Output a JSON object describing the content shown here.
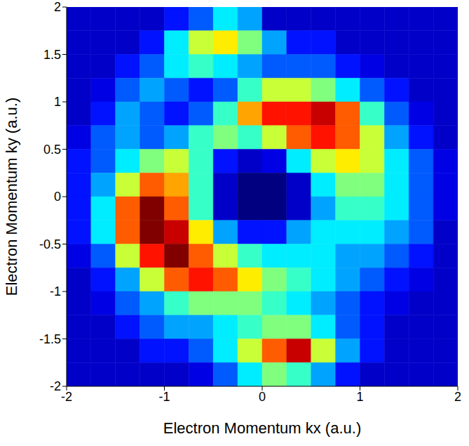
{
  "chart_data": {
    "type": "heatmap",
    "xlabel": "Electron Momentum kx (a.u.)",
    "ylabel": "Electron Momentum ky (a.u.)",
    "xlim": [
      -2,
      2
    ],
    "ylim": [
      -2,
      2
    ],
    "xticks": [
      -2,
      -1,
      0,
      1,
      2
    ],
    "yticks": [
      -2,
      -1.5,
      -1,
      -0.5,
      0,
      0.5,
      1,
      1.5,
      2
    ],
    "x": [
      -1.875,
      -1.625,
      -1.375,
      -1.125,
      -0.875,
      -0.625,
      -0.375,
      -0.125,
      0.125,
      0.375,
      0.625,
      0.875,
      1.125,
      1.375,
      1.625,
      1.875
    ],
    "y": [
      1.875,
      1.625,
      1.375,
      1.125,
      0.875,
      0.625,
      0.375,
      0.125,
      -0.125,
      -0.375,
      -0.625,
      -0.875,
      -1.125,
      -1.375,
      -1.625,
      -1.875
    ],
    "z": [
      [
        0.1,
        0.1,
        0.1,
        0.1,
        0.15,
        0.2,
        0.3,
        0.25,
        0.1,
        0.1,
        0.1,
        0.1,
        0.1,
        0.1,
        0.1,
        0.1
      ],
      [
        0.1,
        0.1,
        0.1,
        0.15,
        0.3,
        0.45,
        0.5,
        0.4,
        0.25,
        0.15,
        0.15,
        0.1,
        0.1,
        0.1,
        0.1,
        0.1
      ],
      [
        0.1,
        0.1,
        0.15,
        0.2,
        0.3,
        0.35,
        0.3,
        0.25,
        0.2,
        0.2,
        0.2,
        0.15,
        0.12,
        0.1,
        0.1,
        0.1
      ],
      [
        0.1,
        0.12,
        0.2,
        0.25,
        0.2,
        0.15,
        0.2,
        0.35,
        0.45,
        0.45,
        0.4,
        0.3,
        0.2,
        0.15,
        0.1,
        0.1
      ],
      [
        0.1,
        0.15,
        0.25,
        0.2,
        0.15,
        0.2,
        0.35,
        0.55,
        0.65,
        0.65,
        0.7,
        0.6,
        0.35,
        0.2,
        0.12,
        0.1
      ],
      [
        0.12,
        0.2,
        0.25,
        0.2,
        0.25,
        0.35,
        0.4,
        0.35,
        0.45,
        0.6,
        0.65,
        0.6,
        0.45,
        0.25,
        0.15,
        0.1
      ],
      [
        0.15,
        0.2,
        0.3,
        0.4,
        0.45,
        0.35,
        0.15,
        0.1,
        0.12,
        0.3,
        0.45,
        0.5,
        0.45,
        0.3,
        0.2,
        0.12
      ],
      [
        0.15,
        0.25,
        0.45,
        0.6,
        0.55,
        0.35,
        0.1,
        0.05,
        0.05,
        0.1,
        0.3,
        0.4,
        0.4,
        0.3,
        0.2,
        0.12
      ],
      [
        0.15,
        0.3,
        0.6,
        0.75,
        0.6,
        0.35,
        0.1,
        0.05,
        0.05,
        0.1,
        0.25,
        0.35,
        0.35,
        0.3,
        0.2,
        0.12
      ],
      [
        0.15,
        0.3,
        0.6,
        0.75,
        0.7,
        0.5,
        0.25,
        0.15,
        0.15,
        0.25,
        0.3,
        0.3,
        0.3,
        0.25,
        0.2,
        0.1
      ],
      [
        0.12,
        0.2,
        0.45,
        0.65,
        0.75,
        0.6,
        0.45,
        0.35,
        0.3,
        0.3,
        0.3,
        0.25,
        0.25,
        0.2,
        0.15,
        0.1
      ],
      [
        0.1,
        0.15,
        0.25,
        0.45,
        0.6,
        0.65,
        0.6,
        0.5,
        0.4,
        0.35,
        0.3,
        0.25,
        0.2,
        0.15,
        0.12,
        0.1
      ],
      [
        0.1,
        0.12,
        0.2,
        0.25,
        0.35,
        0.4,
        0.4,
        0.4,
        0.35,
        0.3,
        0.25,
        0.2,
        0.15,
        0.12,
        0.1,
        0.1
      ],
      [
        0.1,
        0.1,
        0.15,
        0.2,
        0.25,
        0.25,
        0.3,
        0.35,
        0.4,
        0.4,
        0.3,
        0.2,
        0.15,
        0.1,
        0.1,
        0.1
      ],
      [
        0.1,
        0.1,
        0.1,
        0.15,
        0.15,
        0.2,
        0.3,
        0.45,
        0.6,
        0.7,
        0.45,
        0.25,
        0.15,
        0.1,
        0.1,
        0.1
      ],
      [
        0.1,
        0.1,
        0.1,
        0.1,
        0.1,
        0.12,
        0.2,
        0.3,
        0.4,
        0.35,
        0.25,
        0.15,
        0.1,
        0.1,
        0.1,
        0.1
      ]
    ]
  }
}
